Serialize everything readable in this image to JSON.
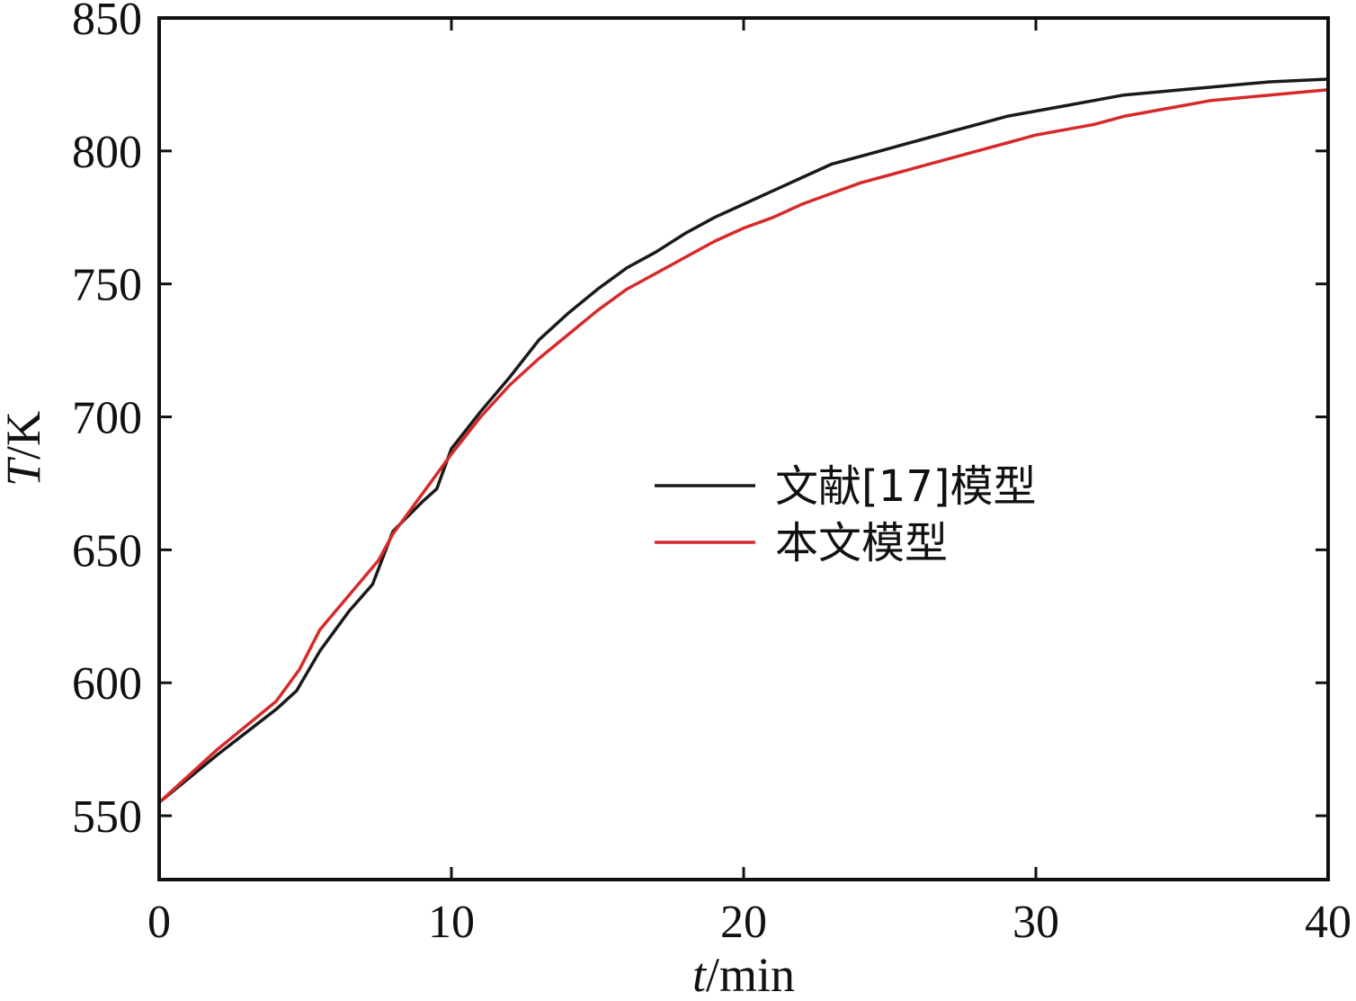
{
  "chart_data": {
    "type": "line",
    "title": "",
    "xlabel": {
      "symbol": "t",
      "unit": "/min"
    },
    "ylabel": {
      "symbol": "T",
      "unit": "/K"
    },
    "xlim": [
      0,
      40
    ],
    "ylim": [
      526,
      850
    ],
    "xticks": [
      0,
      10,
      20,
      30,
      40
    ],
    "yticks": [
      550,
      600,
      650,
      700,
      750,
      800,
      850
    ],
    "grid": false,
    "legend_position": "center-right",
    "series": [
      {
        "name": "文献[17]模型",
        "color": "#1a1a1a",
        "x": [
          0,
          2,
          4,
          4.7,
          5.5,
          6.5,
          7.3,
          8,
          9,
          9.5,
          10,
          11,
          12,
          13,
          14,
          15,
          16,
          17,
          18,
          19,
          20,
          21,
          22,
          23,
          24,
          25,
          26,
          27,
          28,
          29,
          30,
          31,
          32,
          33,
          34,
          35,
          36,
          37,
          38,
          39,
          40
        ],
        "y": [
          555,
          573,
          590,
          597,
          612,
          627,
          637,
          657,
          668,
          673,
          688,
          702,
          715,
          729,
          739,
          748,
          756,
          762,
          769,
          775,
          780,
          785,
          790,
          795,
          798,
          801,
          804,
          807,
          810,
          813,
          815,
          817,
          819,
          821,
          822,
          823,
          824,
          825,
          826,
          826.5,
          827
        ]
      },
      {
        "name": "本文模型",
        "color": "#d62a2a",
        "x": [
          0,
          2,
          4,
          4.8,
          5.5,
          6.5,
          7.5,
          8,
          9,
          10,
          11,
          12,
          13,
          14,
          15,
          16,
          17,
          18,
          19,
          20,
          21,
          22,
          23,
          24,
          25,
          26,
          27,
          28,
          29,
          30,
          31,
          32,
          33,
          34,
          35,
          36,
          37,
          38,
          39,
          40
        ],
        "y": [
          555,
          575,
          593,
          605,
          620,
          633,
          646,
          656,
          671,
          686,
          700,
          712,
          722,
          731,
          740,
          748,
          754,
          760,
          766,
          771,
          775,
          780,
          784,
          788,
          791,
          794,
          797,
          800,
          803,
          806,
          808,
          810,
          813,
          815,
          817,
          819,
          820,
          821,
          822,
          823
        ]
      }
    ]
  }
}
